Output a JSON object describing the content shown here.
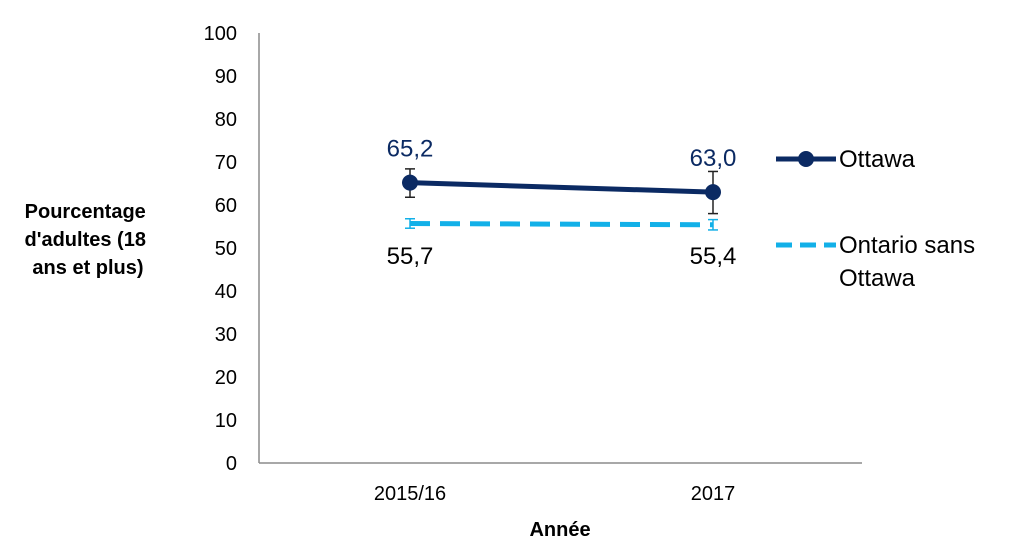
{
  "colors": {
    "ottawa": "#0b2a63",
    "ontario": "#12b0e8",
    "axis": "#8c8c8c",
    "text": "#000000"
  },
  "chart_data": {
    "type": "line",
    "xlabel": "Année",
    "ylabel_lines": [
      "Pourcentage",
      "d'adultes (18",
      "ans et plus)"
    ],
    "categories": [
      "2015/16",
      "2017"
    ],
    "ylim": [
      0,
      100
    ],
    "yticks": [
      "0",
      "10",
      "20",
      "30",
      "40",
      "50",
      "60",
      "70",
      "80",
      "90",
      "100"
    ],
    "grid": false,
    "legend": "right",
    "series": [
      {
        "name": "Ottawa",
        "values": [
          65.2,
          63.0
        ],
        "labels": [
          "65,2",
          "63,0"
        ],
        "error_low": [
          61.8,
          58.0
        ],
        "error_high": [
          68.4,
          67.8
        ],
        "style": "solid-markers"
      },
      {
        "name_lines": [
          "Ontario sans",
          "Ottawa"
        ],
        "values": [
          55.7,
          55.4
        ],
        "labels": [
          "55,7",
          "55,4"
        ],
        "error_low": [
          54.6,
          54.2
        ],
        "error_high": [
          56.8,
          56.6
        ],
        "style": "dashed"
      }
    ]
  }
}
